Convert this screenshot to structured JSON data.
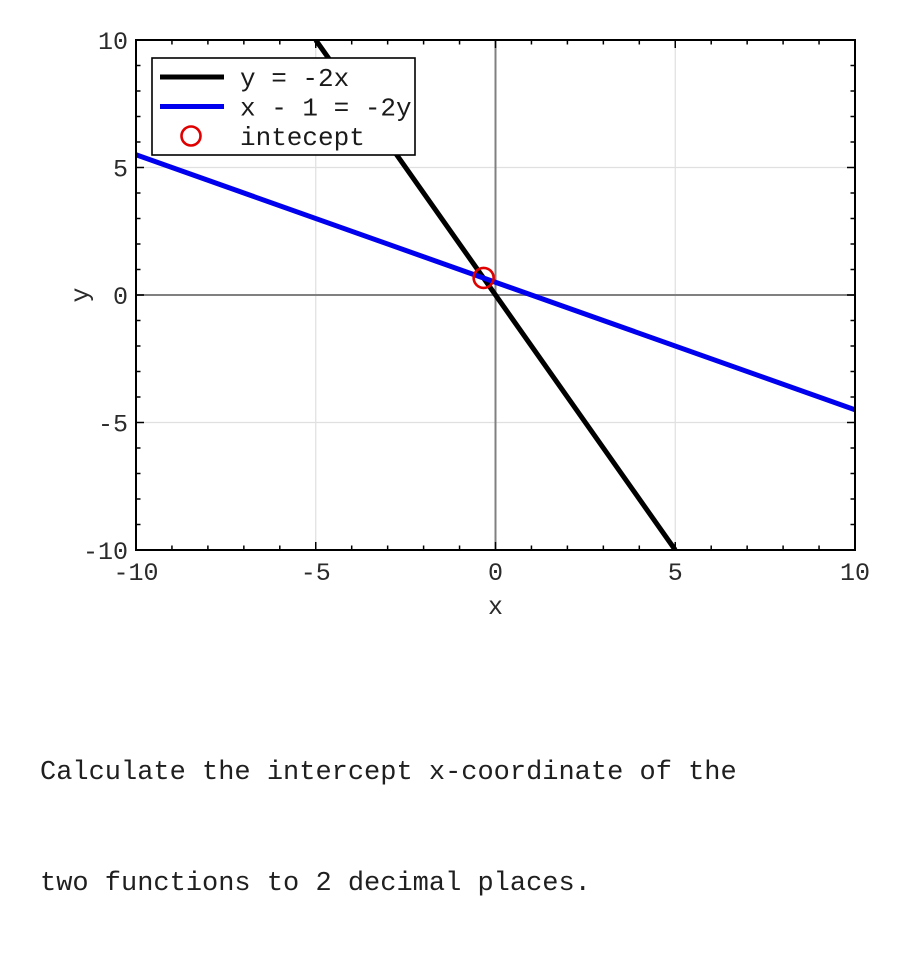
{
  "chart_data": {
    "type": "line",
    "title": "",
    "xlabel": "x",
    "ylabel": "y",
    "xlim": [
      -10,
      10
    ],
    "ylim": [
      -10,
      10
    ],
    "xticks": [
      -10,
      -5,
      0,
      5,
      10
    ],
    "yticks": [
      -10,
      -5,
      0,
      5,
      10
    ],
    "minor_tick_step": 1,
    "grid": true,
    "zero_axis_lines": true,
    "legend_position": "upper left",
    "series": [
      {
        "name": "y = -2x",
        "color": "#000000",
        "x": [
          -5,
          5
        ],
        "y": [
          10,
          -10
        ]
      },
      {
        "name": "x - 1 = -2y",
        "color": "#0000ee",
        "x": [
          -10,
          10
        ],
        "y": [
          5.5,
          -4.5
        ]
      }
    ],
    "markers": [
      {
        "name": "intecept",
        "shape": "open-circle",
        "color": "#e00000",
        "x": -0.33,
        "y": 0.67
      }
    ],
    "legend_entries": [
      {
        "label": "y = -2x",
        "swatch": "line",
        "color": "#000000"
      },
      {
        "label": "x - 1 = -2y",
        "swatch": "line",
        "color": "#0000ee"
      },
      {
        "label": "intecept",
        "swatch": "open-circle",
        "color": "#e00000"
      }
    ]
  },
  "question": {
    "line1": "Calculate the intercept x-coordinate of the",
    "line2": "two functions to 2 decimal places."
  },
  "colors": {
    "background": "#ffffff",
    "grid_line": "#e0e0e0",
    "zero_axis": "#808080",
    "box_border": "#000000",
    "tick_color": "#000000",
    "tick_label": "#2b2b2b",
    "legend_text": "#1a1a1a",
    "question_text": "#1f1f1f"
  }
}
